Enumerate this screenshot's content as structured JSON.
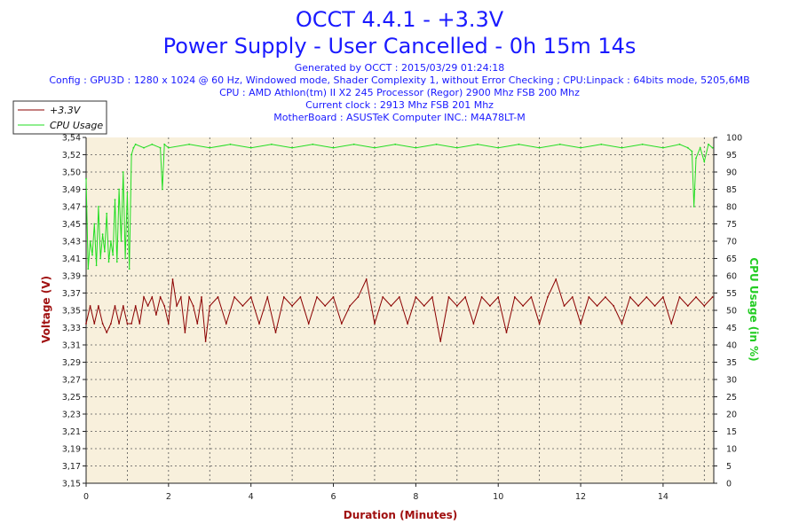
{
  "header": {
    "title": "OCCT 4.4.1 - +3.3V",
    "subtitle": "Power Supply - User Cancelled - 0h 15m 14s",
    "info_lines": [
      "Generated by OCCT : 2015/03/29 01:24:18",
      "Config : GPU3D : 1280 x 1024 @ 60 Hz, Windowed mode, Shader Complexity 1, without Error Checking ; CPU:Linpack : 64bits mode, 5205,6MB",
      "CPU : AMD Athlon(tm) II X2 245 Processor (Regor) 2900 Mhz FSB 200 Mhz",
      "Current clock : 2913 Mhz FSB 201 Mhz",
      "MotherBoard : ASUSTeK Computer INC.: M4A78LT-M"
    ]
  },
  "colors": {
    "voltage": "#8b0000",
    "cpu": "#22dd22",
    "plot_bg": "#f8f0dc",
    "grid": "#555555"
  },
  "chart_data": {
    "type": "line",
    "title": "OCCT 4.4.1 - +3.3V",
    "subtitle": "Power Supply - User Cancelled - 0h 15m 14s",
    "xlabel": "Duration (Minutes)",
    "ylabel_left": "Voltage (V)",
    "ylabel_right": "CPU Usage (in %)",
    "xlim": [
      0,
      15.23
    ],
    "ylim_left": [
      3.15,
      3.54
    ],
    "ylim_right": [
      0,
      100
    ],
    "x_ticks": [
      "0",
      "2",
      "4",
      "6",
      "8",
      "10",
      "12",
      "14"
    ],
    "y_left_ticks": [
      "3,15",
      "3,17",
      "3,19",
      "3,21",
      "3,23",
      "3,25",
      "3,27",
      "3,29",
      "3,31",
      "3,33",
      "3,35",
      "3,37",
      "3,39",
      "3,41",
      "3,43",
      "3,45",
      "3,47",
      "3,49",
      "3,50",
      "3,52",
      "3,54"
    ],
    "y_right_ticks": [
      "0",
      "5",
      "10",
      "15",
      "20",
      "25",
      "30",
      "35",
      "40",
      "45",
      "50",
      "55",
      "60",
      "65",
      "70",
      "75",
      "80",
      "85",
      "90",
      "95",
      "100"
    ],
    "grid": true,
    "legend_position": "top-left",
    "series": [
      {
        "name": "+3.3V",
        "axis": "left",
        "x": [
          0,
          0.1,
          0.2,
          0.3,
          0.4,
          0.5,
          0.6,
          0.7,
          0.8,
          0.9,
          1.0,
          1.1,
          1.2,
          1.3,
          1.4,
          1.5,
          1.6,
          1.7,
          1.8,
          1.9,
          2.0,
          2.1,
          2.2,
          2.3,
          2.4,
          2.5,
          2.6,
          2.7,
          2.8,
          2.9,
          3.0,
          3.2,
          3.4,
          3.6,
          3.8,
          4.0,
          4.2,
          4.4,
          4.6,
          4.8,
          5.0,
          5.2,
          5.4,
          5.6,
          5.8,
          6.0,
          6.2,
          6.4,
          6.6,
          6.8,
          7.0,
          7.2,
          7.4,
          7.6,
          7.8,
          8.0,
          8.2,
          8.4,
          8.6,
          8.8,
          9.0,
          9.2,
          9.4,
          9.6,
          9.8,
          10.0,
          10.2,
          10.4,
          10.6,
          10.8,
          11.0,
          11.2,
          11.4,
          11.6,
          11.8,
          12.0,
          12.2,
          12.4,
          12.6,
          12.8,
          13.0,
          13.2,
          13.4,
          13.6,
          13.8,
          14.0,
          14.2,
          14.4,
          14.6,
          14.8,
          15.0,
          15.2
        ],
        "y": [
          3.33,
          3.35,
          3.33,
          3.35,
          3.33,
          3.32,
          3.33,
          3.35,
          3.33,
          3.35,
          3.33,
          3.33,
          3.35,
          3.33,
          3.36,
          3.35,
          3.36,
          3.34,
          3.36,
          3.35,
          3.33,
          3.38,
          3.35,
          3.36,
          3.32,
          3.36,
          3.35,
          3.33,
          3.36,
          3.31,
          3.35,
          3.36,
          3.33,
          3.36,
          3.35,
          3.36,
          3.33,
          3.36,
          3.32,
          3.36,
          3.35,
          3.36,
          3.33,
          3.36,
          3.35,
          3.36,
          3.33,
          3.35,
          3.36,
          3.38,
          3.33,
          3.36,
          3.35,
          3.36,
          3.33,
          3.36,
          3.35,
          3.36,
          3.31,
          3.36,
          3.35,
          3.36,
          3.33,
          3.36,
          3.35,
          3.36,
          3.32,
          3.36,
          3.35,
          3.36,
          3.33,
          3.36,
          3.38,
          3.35,
          3.36,
          3.33,
          3.36,
          3.35,
          3.36,
          3.35,
          3.33,
          3.36,
          3.35,
          3.36,
          3.35,
          3.36,
          3.33,
          3.36,
          3.35,
          3.36,
          3.35,
          3.36
        ]
      },
      {
        "name": "CPU Usage",
        "axis": "right",
        "x": [
          0,
          0.05,
          0.1,
          0.15,
          0.2,
          0.25,
          0.3,
          0.35,
          0.4,
          0.45,
          0.5,
          0.55,
          0.6,
          0.65,
          0.7,
          0.75,
          0.8,
          0.85,
          0.9,
          0.95,
          1.0,
          1.05,
          1.1,
          1.15,
          1.2,
          1.4,
          1.6,
          1.8,
          1.85,
          1.9,
          2.0,
          2.5,
          3.0,
          3.5,
          4.0,
          4.5,
          5.0,
          5.5,
          6.0,
          6.5,
          7.0,
          7.5,
          8.0,
          8.5,
          9.0,
          9.5,
          10.0,
          10.5,
          11.0,
          11.5,
          12.0,
          12.5,
          13.0,
          13.5,
          14.0,
          14.4,
          14.6,
          14.7,
          14.75,
          14.8,
          14.9,
          15.0,
          15.1,
          15.2
        ],
        "y": [
          88,
          62,
          70,
          66,
          75,
          63,
          80,
          65,
          72,
          67,
          78,
          64,
          70,
          66,
          82,
          64,
          85,
          70,
          90,
          65,
          84,
          62,
          95,
          97,
          98,
          97,
          98,
          97,
          85,
          98,
          97,
          98,
          97,
          98,
          97,
          98,
          97,
          98,
          97,
          98,
          97,
          98,
          97,
          98,
          97,
          98,
          97,
          98,
          97,
          98,
          97,
          98,
          97,
          98,
          97,
          98,
          97,
          96,
          80,
          94,
          97,
          93,
          98,
          97
        ]
      }
    ]
  }
}
